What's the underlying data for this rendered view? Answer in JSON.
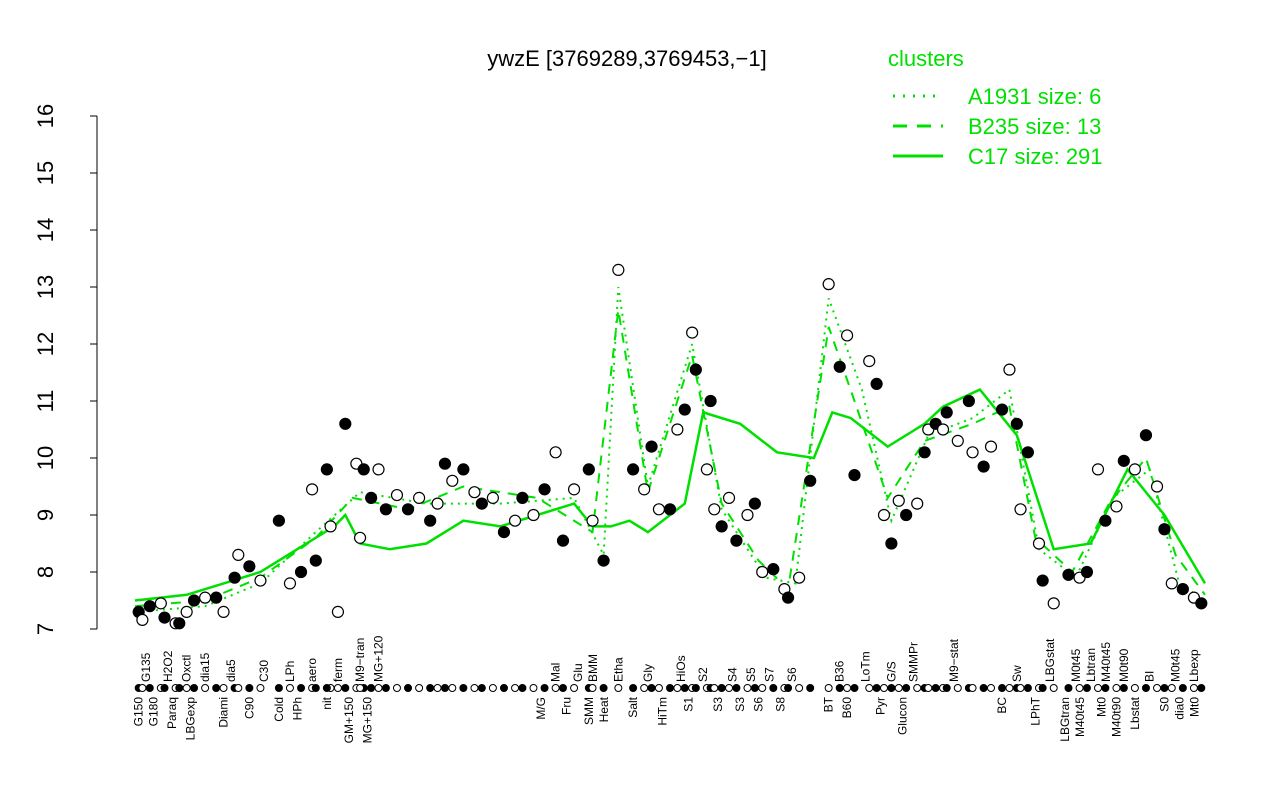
{
  "chart_data": {
    "type": "line",
    "title": "ywzE [3769289,3769453,−1]",
    "xlabel": "",
    "ylabel": "",
    "ylim": [
      7,
      16
    ],
    "xlim": [
      1,
      291
    ],
    "yticks": [
      "7",
      "8",
      "9",
      "10",
      "11",
      "12",
      "13",
      "14",
      "15",
      "16"
    ],
    "grid": false,
    "legend": {
      "title": "clusters",
      "placement": "top-right",
      "entries": [
        {
          "label": "A1931 size: 6",
          "style": "dotted"
        },
        {
          "label": "B235 size: 13",
          "style": "dashed"
        },
        {
          "label": "C17 size: 291",
          "style": "solid"
        }
      ]
    },
    "color": "#00e000",
    "series": [
      {
        "name": "C17 size: 291",
        "style": "solid",
        "points": [
          [
            1,
            7.5
          ],
          [
            15,
            7.6
          ],
          [
            25,
            7.8
          ],
          [
            35,
            8.0
          ],
          [
            45,
            8.4
          ],
          [
            55,
            8.8
          ],
          [
            58,
            9.0
          ],
          [
            62,
            8.5
          ],
          [
            70,
            8.4
          ],
          [
            80,
            8.5
          ],
          [
            90,
            8.9
          ],
          [
            100,
            8.8
          ],
          [
            110,
            9.0
          ],
          [
            120,
            9.2
          ],
          [
            125,
            8.8
          ],
          [
            130,
            8.8
          ],
          [
            135,
            8.9
          ],
          [
            140,
            8.7
          ],
          [
            150,
            9.2
          ],
          [
            155,
            10.8
          ],
          [
            165,
            10.6
          ],
          [
            175,
            10.1
          ],
          [
            185,
            10.0
          ],
          [
            190,
            10.8
          ],
          [
            195,
            10.7
          ],
          [
            205,
            10.2
          ],
          [
            215,
            10.6
          ],
          [
            220,
            10.9
          ],
          [
            230,
            11.2
          ],
          [
            240,
            10.4
          ],
          [
            250,
            8.4
          ],
          [
            260,
            8.5
          ],
          [
            270,
            9.8
          ],
          [
            280,
            9.0
          ],
          [
            291,
            7.8
          ]
        ]
      },
      {
        "name": "B235 size: 13",
        "style": "dashed",
        "points": [
          [
            1,
            7.4
          ],
          [
            20,
            7.5
          ],
          [
            35,
            7.9
          ],
          [
            50,
            8.6
          ],
          [
            60,
            9.3
          ],
          [
            75,
            9.1
          ],
          [
            90,
            9.5
          ],
          [
            110,
            9.3
          ],
          [
            125,
            8.7
          ],
          [
            132,
            12.6
          ],
          [
            140,
            9.4
          ],
          [
            152,
            11.8
          ],
          [
            160,
            9.2
          ],
          [
            170,
            8.2
          ],
          [
            178,
            7.7
          ],
          [
            189,
            12.3
          ],
          [
            196,
            11.0
          ],
          [
            205,
            9.3
          ],
          [
            215,
            10.3
          ],
          [
            228,
            10.6
          ],
          [
            238,
            10.9
          ],
          [
            245,
            8.6
          ],
          [
            255,
            8.0
          ],
          [
            265,
            9.2
          ],
          [
            275,
            10.0
          ],
          [
            283,
            8.3
          ],
          [
            291,
            7.6
          ]
        ]
      },
      {
        "name": "A1931 size: 6",
        "style": "dotted",
        "points": [
          [
            1,
            7.3
          ],
          [
            20,
            7.4
          ],
          [
            35,
            7.8
          ],
          [
            50,
            8.7
          ],
          [
            62,
            9.4
          ],
          [
            80,
            9.2
          ],
          [
            100,
            9.2
          ],
          [
            120,
            9.3
          ],
          [
            128,
            8.3
          ],
          [
            132,
            13.0
          ],
          [
            140,
            9.5
          ],
          [
            152,
            12.0
          ],
          [
            160,
            9.1
          ],
          [
            172,
            7.9
          ],
          [
            180,
            7.8
          ],
          [
            189,
            12.8
          ],
          [
            198,
            11.2
          ],
          [
            206,
            8.9
          ],
          [
            216,
            10.4
          ],
          [
            228,
            10.7
          ],
          [
            238,
            11.2
          ],
          [
            246,
            8.4
          ],
          [
            256,
            7.9
          ],
          [
            266,
            9.3
          ],
          [
            276,
            9.8
          ],
          [
            284,
            7.8
          ],
          [
            291,
            7.5
          ]
        ]
      }
    ],
    "points": [
      [
        2,
        7.3
      ],
      [
        3,
        7.16
      ],
      [
        5,
        7.4
      ],
      [
        8,
        7.45
      ],
      [
        9,
        7.2
      ],
      [
        12,
        7.1
      ],
      [
        13,
        7.1
      ],
      [
        15,
        7.3
      ],
      [
        17,
        7.5
      ],
      [
        20,
        7.55
      ],
      [
        23,
        7.55
      ],
      [
        25,
        7.3
      ],
      [
        28,
        7.9
      ],
      [
        29,
        8.3
      ],
      [
        32,
        8.1
      ],
      [
        35,
        7.85
      ],
      [
        40,
        8.9
      ],
      [
        43,
        7.8
      ],
      [
        46,
        8.0
      ],
      [
        49,
        9.45
      ],
      [
        50,
        8.2
      ],
      [
        54,
        8.8
      ],
      [
        53,
        9.8
      ],
      [
        56,
        7.3
      ],
      [
        58,
        10.6
      ],
      [
        61,
        9.9
      ],
      [
        63,
        9.8
      ],
      [
        62,
        8.6
      ],
      [
        65,
        9.3
      ],
      [
        67,
        9.8
      ],
      [
        69,
        9.1
      ],
      [
        72,
        9.35
      ],
      [
        75,
        9.1
      ],
      [
        78,
        9.3
      ],
      [
        81,
        8.9
      ],
      [
        83,
        9.2
      ],
      [
        85,
        9.9
      ],
      [
        87,
        9.6
      ],
      [
        90,
        9.8
      ],
      [
        93,
        9.4
      ],
      [
        95,
        9.2
      ],
      [
        98,
        9.3
      ],
      [
        101,
        8.7
      ],
      [
        104,
        8.9
      ],
      [
        106,
        9.3
      ],
      [
        109,
        9.0
      ],
      [
        112,
        9.45
      ],
      [
        115,
        10.1
      ],
      [
        117,
        8.55
      ],
      [
        120,
        9.45
      ],
      [
        124,
        9.8
      ],
      [
        125,
        8.9
      ],
      [
        128,
        8.2
      ],
      [
        132,
        13.3
      ],
      [
        136,
        9.8
      ],
      [
        139,
        9.45
      ],
      [
        141,
        10.2
      ],
      [
        143,
        9.1
      ],
      [
        146,
        9.1
      ],
      [
        148,
        10.5
      ],
      [
        150,
        10.85
      ],
      [
        152,
        12.2
      ],
      [
        153,
        11.55
      ],
      [
        156,
        9.8
      ],
      [
        157,
        11.0
      ],
      [
        158,
        9.1
      ],
      [
        160,
        8.8
      ],
      [
        162,
        9.3
      ],
      [
        164,
        8.55
      ],
      [
        167,
        9.0
      ],
      [
        169,
        9.2
      ],
      [
        171,
        8.0
      ],
      [
        174,
        8.05
      ],
      [
        177,
        7.7
      ],
      [
        178,
        7.55
      ],
      [
        181,
        7.9
      ],
      [
        184,
        9.6
      ],
      [
        189,
        13.05
      ],
      [
        192,
        11.6
      ],
      [
        194,
        12.15
      ],
      [
        196,
        9.7
      ],
      [
        200,
        11.7
      ],
      [
        202,
        11.3
      ],
      [
        204,
        9.0
      ],
      [
        206,
        8.5
      ],
      [
        208,
        9.25
      ],
      [
        210,
        9.0
      ],
      [
        213,
        9.2
      ],
      [
        215,
        10.1
      ],
      [
        216,
        10.5
      ],
      [
        218,
        10.6
      ],
      [
        220,
        10.5
      ],
      [
        221,
        10.8
      ],
      [
        224,
        10.3
      ],
      [
        227,
        11.0
      ],
      [
        228,
        10.1
      ],
      [
        231,
        9.85
      ],
      [
        233,
        10.2
      ],
      [
        236,
        10.85
      ],
      [
        238,
        11.55
      ],
      [
        240,
        10.6
      ],
      [
        241,
        9.1
      ],
      [
        243,
        10.1
      ],
      [
        246,
        8.5
      ],
      [
        247,
        7.85
      ],
      [
        250,
        7.45
      ],
      [
        254,
        7.95
      ],
      [
        257,
        7.9
      ],
      [
        259,
        8.0
      ],
      [
        262,
        9.8
      ],
      [
        264,
        8.9
      ],
      [
        267,
        9.15
      ],
      [
        269,
        9.95
      ],
      [
        272,
        9.8
      ],
      [
        275,
        10.4
      ],
      [
        278,
        9.5
      ],
      [
        280,
        8.75
      ],
      [
        282,
        7.8
      ],
      [
        285,
        7.7
      ],
      [
        288,
        7.55
      ],
      [
        290,
        7.45
      ]
    ],
    "xlabels_top": [
      [
        "G135",
        4
      ],
      [
        "H2O2",
        10
      ],
      [
        "Oxctl",
        15
      ],
      [
        "dia15",
        20
      ],
      [
        "dia5",
        27
      ],
      [
        "C30",
        36
      ],
      [
        "LPh",
        43
      ],
      [
        "aero",
        49
      ],
      [
        "ferm",
        56
      ],
      [
        "M9−tran",
        62
      ],
      [
        "MG+120",
        67
      ],
      [
        "Mal",
        115
      ],
      [
        "Glu",
        121
      ],
      [
        "BMM",
        125
      ],
      [
        "Etha",
        132
      ],
      [
        "Gly",
        140
      ],
      [
        "HiOs",
        149
      ],
      [
        "S2",
        155
      ],
      [
        "S4",
        163
      ],
      [
        "S5",
        168
      ],
      [
        "S7",
        173
      ],
      [
        "S6",
        179
      ],
      [
        "B36",
        192
      ],
      [
        "LoTm",
        199
      ],
      [
        "G/S",
        206
      ],
      [
        "SMMPr",
        212
      ],
      [
        "M9−stat",
        223
      ],
      [
        "Sw",
        240
      ],
      [
        "LBGstat",
        249
      ],
      [
        "M0t45",
        256
      ],
      [
        "Lbtran",
        258
      ],
      [
        "M40t45",
        261
      ],
      [
        "M0t90",
        269
      ],
      [
        "BI",
        276
      ],
      [
        "M0t45",
        283
      ],
      [
        "Lbexp",
        288
      ]
    ],
    "xlabels_bottom": [
      [
        "G150",
        2
      ],
      [
        "G180",
        6
      ],
      [
        "Paraq",
        11
      ],
      [
        "LBGexp",
        16
      ],
      [
        "Diami",
        25
      ],
      [
        "C90",
        32
      ],
      [
        "Cold",
        40
      ],
      [
        "HPh",
        45
      ],
      [
        "nit",
        53
      ],
      [
        "GM+150",
        59
      ],
      [
        "MG+150",
        64
      ],
      [
        "M/G",
        111
      ],
      [
        "Fru",
        118
      ],
      [
        "SMM",
        124
      ],
      [
        "Heat",
        128
      ],
      [
        "Salt",
        136
      ],
      [
        "HiTm",
        144
      ],
      [
        "S1",
        151
      ],
      [
        "S3",
        159
      ],
      [
        "S3",
        165
      ],
      [
        "S6",
        170
      ],
      [
        "S8",
        176
      ],
      [
        "BT",
        189
      ],
      [
        "B60",
        194
      ],
      [
        "Pyr",
        203
      ],
      [
        "Glucon",
        209
      ],
      [
        "BC",
        236
      ],
      [
        "LPhT",
        245
      ],
      [
        "LBGtran",
        253
      ],
      [
        "M40t45",
        257
      ],
      [
        "Mt0",
        263
      ],
      [
        "M40t90",
        267
      ],
      [
        "Lbstat",
        272
      ],
      [
        "S0",
        280
      ],
      [
        "dia0",
        284
      ],
      [
        "Mt0",
        288
      ]
    ]
  }
}
